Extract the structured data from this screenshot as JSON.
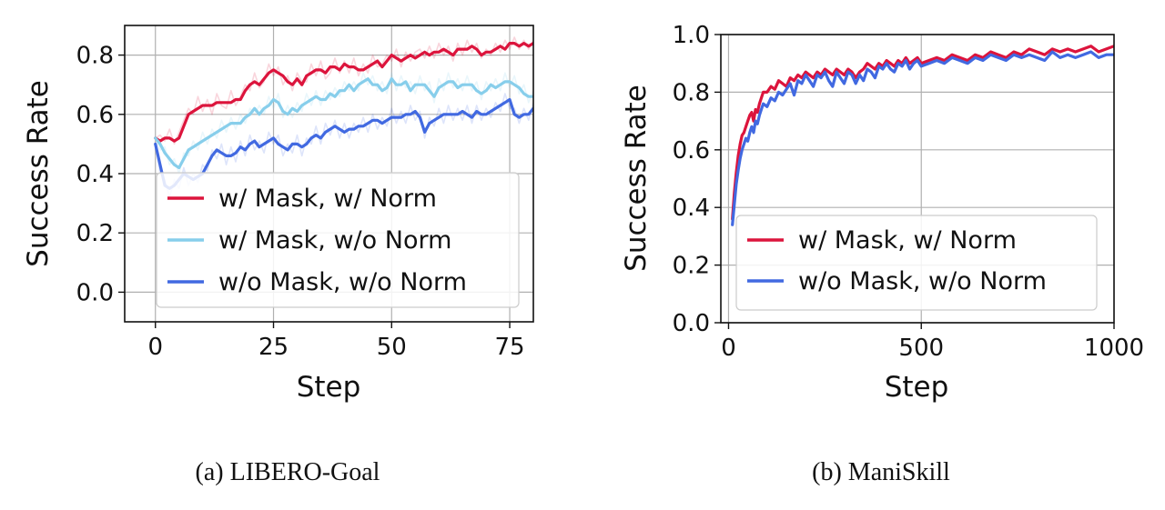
{
  "chart_data": [
    {
      "type": "line",
      "caption": "(a) LIBERO-Goal",
      "xlabel": "Step",
      "ylabel": "Success Rate",
      "xlim": [
        -6.5,
        80
      ],
      "ylim": [
        -0.1,
        0.9
      ],
      "xticks": [
        0,
        25,
        50,
        75
      ],
      "yticks": [
        0.0,
        0.2,
        0.4,
        0.6,
        0.8
      ],
      "xtick_labels": [
        "0",
        "25",
        "50",
        "75"
      ],
      "ytick_labels": [
        "0.0",
        "0.2",
        "0.4",
        "0.6",
        "0.8"
      ],
      "grid": true,
      "legend_position": "lower-right",
      "x": [
        0,
        1,
        2,
        3,
        4,
        5,
        6,
        7,
        8,
        9,
        10,
        11,
        12,
        13,
        14,
        15,
        16,
        17,
        18,
        19,
        20,
        21,
        22,
        23,
        24,
        25,
        26,
        27,
        28,
        29,
        30,
        31,
        32,
        33,
        34,
        35,
        36,
        37,
        38,
        39,
        40,
        41,
        42,
        43,
        44,
        45,
        46,
        47,
        48,
        49,
        50,
        51,
        52,
        53,
        54,
        55,
        56,
        57,
        58,
        59,
        60,
        61,
        62,
        63,
        64,
        65,
        66,
        67,
        68,
        69,
        70,
        71,
        72,
        73,
        74,
        75,
        76,
        77,
        78,
        79,
        80
      ],
      "series": [
        {
          "name": "w/ Mask, w/ Norm",
          "color": "#DC143C",
          "values": [
            0.52,
            0.51,
            0.52,
            0.52,
            0.51,
            0.52,
            0.56,
            0.6,
            0.61,
            0.62,
            0.63,
            0.63,
            0.63,
            0.64,
            0.64,
            0.64,
            0.64,
            0.65,
            0.65,
            0.68,
            0.7,
            0.71,
            0.7,
            0.72,
            0.74,
            0.75,
            0.74,
            0.73,
            0.71,
            0.7,
            0.72,
            0.7,
            0.73,
            0.74,
            0.75,
            0.75,
            0.74,
            0.76,
            0.76,
            0.75,
            0.77,
            0.76,
            0.76,
            0.75,
            0.75,
            0.76,
            0.77,
            0.78,
            0.76,
            0.78,
            0.8,
            0.79,
            0.78,
            0.79,
            0.8,
            0.79,
            0.8,
            0.81,
            0.8,
            0.81,
            0.81,
            0.82,
            0.81,
            0.8,
            0.82,
            0.82,
            0.82,
            0.83,
            0.82,
            0.8,
            0.81,
            0.81,
            0.82,
            0.83,
            0.82,
            0.84,
            0.84,
            0.83,
            0.84,
            0.83,
            0.84
          ],
          "noisy": [
            0.52,
            0.53,
            0.51,
            0.55,
            0.5,
            0.54,
            0.58,
            0.62,
            0.6,
            0.66,
            0.61,
            0.65,
            0.6,
            0.67,
            0.63,
            0.62,
            0.68,
            0.63,
            0.66,
            0.7,
            0.68,
            0.74,
            0.69,
            0.71,
            0.77,
            0.73,
            0.76,
            0.7,
            0.73,
            0.68,
            0.74,
            0.71,
            0.71,
            0.77,
            0.73,
            0.78,
            0.72,
            0.74,
            0.79,
            0.74,
            0.78,
            0.74,
            0.79,
            0.73,
            0.77,
            0.74,
            0.8,
            0.76,
            0.77,
            0.8,
            0.78,
            0.82,
            0.76,
            0.81,
            0.78,
            0.81,
            0.82,
            0.79,
            0.83,
            0.79,
            0.84,
            0.8,
            0.83,
            0.78,
            0.84,
            0.8,
            0.85,
            0.81,
            0.84,
            0.79,
            0.82,
            0.8,
            0.84,
            0.81,
            0.85,
            0.82,
            0.86,
            0.82,
            0.85,
            0.82,
            0.85
          ]
        },
        {
          "name": "w/ Mask, w/o Norm",
          "color": "#87CEEB",
          "values": [
            0.52,
            0.5,
            0.47,
            0.45,
            0.43,
            0.42,
            0.45,
            0.48,
            0.49,
            0.5,
            0.51,
            0.52,
            0.53,
            0.54,
            0.55,
            0.56,
            0.57,
            0.57,
            0.57,
            0.59,
            0.6,
            0.62,
            0.6,
            0.62,
            0.63,
            0.65,
            0.64,
            0.61,
            0.6,
            0.62,
            0.61,
            0.63,
            0.64,
            0.65,
            0.66,
            0.65,
            0.65,
            0.67,
            0.66,
            0.68,
            0.68,
            0.7,
            0.68,
            0.7,
            0.71,
            0.72,
            0.7,
            0.7,
            0.68,
            0.69,
            0.72,
            0.7,
            0.7,
            0.71,
            0.68,
            0.7,
            0.7,
            0.7,
            0.68,
            0.66,
            0.69,
            0.7,
            0.71,
            0.71,
            0.69,
            0.7,
            0.7,
            0.7,
            0.68,
            0.67,
            0.68,
            0.7,
            0.69,
            0.7,
            0.71,
            0.71,
            0.7,
            0.69,
            0.67,
            0.66,
            0.66
          ],
          "noisy": [
            0.52,
            0.48,
            0.49,
            0.43,
            0.45,
            0.4,
            0.47,
            0.46,
            0.51,
            0.48,
            0.54,
            0.5,
            0.55,
            0.52,
            0.58,
            0.54,
            0.59,
            0.55,
            0.6,
            0.57,
            0.62,
            0.6,
            0.63,
            0.6,
            0.66,
            0.62,
            0.67,
            0.59,
            0.63,
            0.59,
            0.64,
            0.61,
            0.67,
            0.63,
            0.68,
            0.63,
            0.68,
            0.65,
            0.69,
            0.66,
            0.71,
            0.68,
            0.71,
            0.68,
            0.74,
            0.7,
            0.73,
            0.68,
            0.71,
            0.67,
            0.74,
            0.68,
            0.73,
            0.69,
            0.71,
            0.67,
            0.73,
            0.68,
            0.71,
            0.64,
            0.72,
            0.68,
            0.74,
            0.69,
            0.72,
            0.68,
            0.73,
            0.68,
            0.71,
            0.65,
            0.71,
            0.68,
            0.72,
            0.68,
            0.74,
            0.69,
            0.73,
            0.67,
            0.7,
            0.64,
            0.68
          ]
        },
        {
          "name": "w/o Mask, w/o Norm",
          "color": "#4169E1",
          "values": [
            0.5,
            0.43,
            0.36,
            0.35,
            0.36,
            0.38,
            0.4,
            0.39,
            0.38,
            0.39,
            0.4,
            0.43,
            0.46,
            0.48,
            0.47,
            0.46,
            0.46,
            0.47,
            0.49,
            0.48,
            0.5,
            0.51,
            0.49,
            0.5,
            0.51,
            0.52,
            0.5,
            0.49,
            0.48,
            0.5,
            0.5,
            0.49,
            0.5,
            0.52,
            0.53,
            0.52,
            0.54,
            0.55,
            0.56,
            0.55,
            0.54,
            0.55,
            0.55,
            0.56,
            0.56,
            0.57,
            0.58,
            0.58,
            0.57,
            0.58,
            0.59,
            0.59,
            0.59,
            0.6,
            0.6,
            0.61,
            0.59,
            0.54,
            0.57,
            0.58,
            0.59,
            0.6,
            0.6,
            0.6,
            0.6,
            0.61,
            0.6,
            0.59,
            0.61,
            0.6,
            0.6,
            0.61,
            0.62,
            0.63,
            0.64,
            0.65,
            0.6,
            0.59,
            0.6,
            0.6,
            0.62
          ],
          "noisy": [
            0.5,
            0.4,
            0.38,
            0.32,
            0.38,
            0.35,
            0.42,
            0.36,
            0.4,
            0.37,
            0.43,
            0.41,
            0.48,
            0.45,
            0.5,
            0.43,
            0.49,
            0.44,
            0.51,
            0.46,
            0.53,
            0.48,
            0.51,
            0.47,
            0.54,
            0.5,
            0.53,
            0.46,
            0.5,
            0.47,
            0.53,
            0.46,
            0.52,
            0.5,
            0.56,
            0.5,
            0.57,
            0.53,
            0.58,
            0.52,
            0.57,
            0.52,
            0.57,
            0.54,
            0.59,
            0.54,
            0.6,
            0.55,
            0.59,
            0.56,
            0.62,
            0.57,
            0.61,
            0.57,
            0.63,
            0.58,
            0.61,
            0.52,
            0.59,
            0.56,
            0.62,
            0.57,
            0.63,
            0.58,
            0.62,
            0.58,
            0.63,
            0.57,
            0.63,
            0.58,
            0.62,
            0.59,
            0.64,
            0.61,
            0.67,
            0.62,
            0.62,
            0.57,
            0.62,
            0.58,
            0.64
          ]
        }
      ]
    },
    {
      "type": "line",
      "caption": "(b) ManiSkill",
      "xlabel": "Step",
      "ylabel": "Success Rate",
      "xlim": [
        -20,
        1000
      ],
      "ylim": [
        0.0,
        1.0
      ],
      "xticks": [
        0,
        500,
        1000
      ],
      "yticks": [
        0.0,
        0.2,
        0.4,
        0.6,
        0.8,
        1.0
      ],
      "xtick_labels": [
        "0",
        "500",
        "1000"
      ],
      "ytick_labels": [
        "0.0",
        "0.2",
        "0.4",
        "0.6",
        "0.8",
        "1.0"
      ],
      "grid": true,
      "legend_position": "lower-right",
      "x": [
        10,
        15,
        20,
        25,
        30,
        35,
        40,
        45,
        50,
        55,
        60,
        65,
        70,
        75,
        80,
        85,
        90,
        100,
        110,
        120,
        130,
        140,
        150,
        160,
        170,
        180,
        190,
        200,
        210,
        220,
        230,
        240,
        250,
        260,
        270,
        280,
        290,
        300,
        310,
        320,
        330,
        340,
        350,
        360,
        370,
        380,
        390,
        400,
        410,
        420,
        430,
        440,
        450,
        460,
        470,
        480,
        490,
        500,
        520,
        540,
        560,
        580,
        600,
        620,
        640,
        660,
        680,
        700,
        720,
        740,
        760,
        780,
        800,
        820,
        840,
        860,
        880,
        900,
        920,
        940,
        960,
        980,
        1000
      ],
      "series": [
        {
          "name": "w/ Mask, w/ Norm",
          "color": "#DC143C",
          "values": [
            0.36,
            0.45,
            0.52,
            0.58,
            0.62,
            0.65,
            0.66,
            0.68,
            0.7,
            0.72,
            0.73,
            0.7,
            0.74,
            0.73,
            0.76,
            0.78,
            0.8,
            0.8,
            0.82,
            0.81,
            0.84,
            0.83,
            0.82,
            0.85,
            0.84,
            0.86,
            0.85,
            0.87,
            0.86,
            0.85,
            0.87,
            0.86,
            0.88,
            0.87,
            0.86,
            0.88,
            0.87,
            0.86,
            0.88,
            0.87,
            0.85,
            0.87,
            0.88,
            0.9,
            0.89,
            0.88,
            0.9,
            0.89,
            0.91,
            0.9,
            0.89,
            0.91,
            0.9,
            0.92,
            0.9,
            0.91,
            0.92,
            0.9,
            0.91,
            0.92,
            0.91,
            0.93,
            0.92,
            0.91,
            0.93,
            0.92,
            0.94,
            0.93,
            0.92,
            0.94,
            0.93,
            0.95,
            0.94,
            0.93,
            0.95,
            0.94,
            0.95,
            0.94,
            0.95,
            0.96,
            0.94,
            0.95,
            0.96
          ]
        },
        {
          "name": "w/o Mask, w/o Norm",
          "color": "#4169E1",
          "values": [
            0.34,
            0.41,
            0.48,
            0.53,
            0.57,
            0.6,
            0.62,
            0.64,
            0.63,
            0.66,
            0.68,
            0.66,
            0.7,
            0.69,
            0.72,
            0.74,
            0.76,
            0.75,
            0.78,
            0.77,
            0.8,
            0.79,
            0.81,
            0.83,
            0.79,
            0.84,
            0.83,
            0.86,
            0.84,
            0.82,
            0.86,
            0.85,
            0.87,
            0.84,
            0.82,
            0.87,
            0.85,
            0.83,
            0.87,
            0.86,
            0.83,
            0.86,
            0.84,
            0.88,
            0.87,
            0.85,
            0.89,
            0.88,
            0.9,
            0.88,
            0.87,
            0.9,
            0.89,
            0.91,
            0.88,
            0.9,
            0.91,
            0.89,
            0.9,
            0.91,
            0.9,
            0.92,
            0.91,
            0.9,
            0.92,
            0.91,
            0.93,
            0.92,
            0.91,
            0.93,
            0.92,
            0.93,
            0.92,
            0.91,
            0.94,
            0.92,
            0.93,
            0.92,
            0.93,
            0.94,
            0.92,
            0.93,
            0.93
          ]
        }
      ]
    }
  ]
}
